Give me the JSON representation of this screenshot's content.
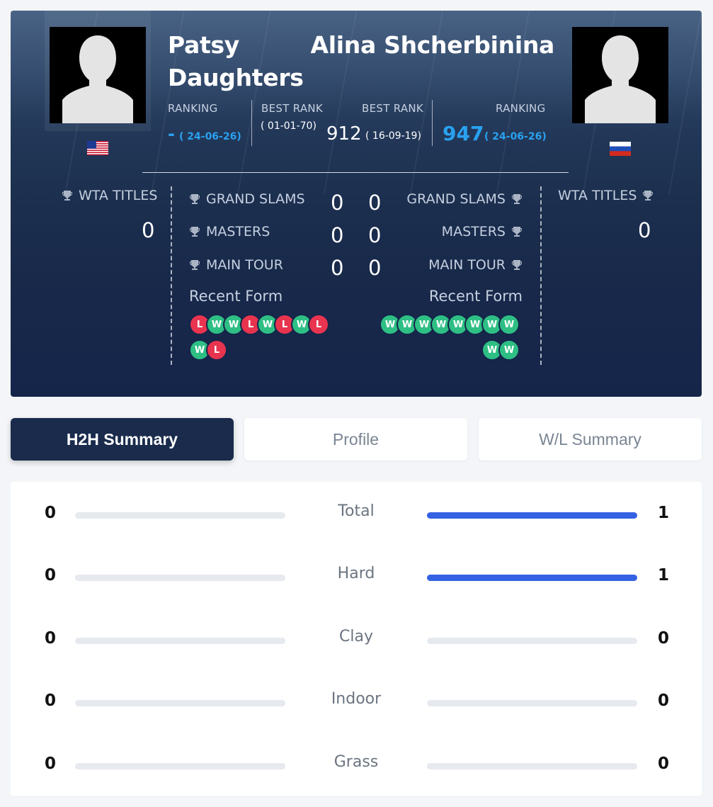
{
  "player1": {
    "name": "Patsy Daughters",
    "flag": "us-flag",
    "ranking_label": "RANKING",
    "ranking": "-",
    "ranking_date": "( 24-06-26)",
    "best_rank_label": "BEST RANK",
    "best_rank_date": "( 01-01-70)",
    "wta_titles_label": "WTA TITLES",
    "wta_titles": "0",
    "grand_slams_label": "GRAND SLAMS",
    "grand_slams": "0",
    "masters_label": "MASTERS",
    "masters": "0",
    "main_tour_label": "MAIN TOUR",
    "main_tour": "0",
    "recent_form_label": "Recent Form",
    "recent_form": [
      "L",
      "W",
      "W",
      "L",
      "W",
      "L",
      "W",
      "L",
      "W",
      "L"
    ]
  },
  "player2": {
    "name": "Alina Shcherbinina",
    "flag": "ru-flag",
    "ranking_label": "RANKING",
    "ranking": "947",
    "ranking_date": "( 24-06-26)",
    "best_rank_label": "BEST RANK",
    "best_rank": "912",
    "best_rank_date": "( 16-09-19)",
    "wta_titles_label": "WTA TITLES",
    "wta_titles": "0",
    "grand_slams_label": "GRAND SLAMS",
    "grand_slams": "0",
    "masters_label": "MASTERS",
    "masters": "0",
    "main_tour_label": "MAIN TOUR",
    "main_tour": "0",
    "recent_form_label": "Recent Form",
    "recent_form": [
      "W",
      "W",
      "W",
      "W",
      "W",
      "W",
      "W",
      "W",
      "W",
      "W"
    ]
  },
  "tabs": [
    {
      "label": "H2H Summary",
      "active": true
    },
    {
      "label": "Profile",
      "active": false
    },
    {
      "label": "W/L Summary",
      "active": false
    }
  ],
  "summary": [
    {
      "label": "Total",
      "left": 0,
      "right": 1
    },
    {
      "label": "Hard",
      "left": 0,
      "right": 1
    },
    {
      "label": "Clay",
      "left": 0,
      "right": 0
    },
    {
      "label": "Indoor",
      "left": 0,
      "right": 0
    },
    {
      "label": "Grass",
      "left": 0,
      "right": 0
    }
  ],
  "colors": {
    "win": "#2ebf84",
    "loss": "#e8344f",
    "accent_blue": "#2aa1f0",
    "bar_fill": "#3562e3",
    "active_tab": "#1a2b4c"
  }
}
